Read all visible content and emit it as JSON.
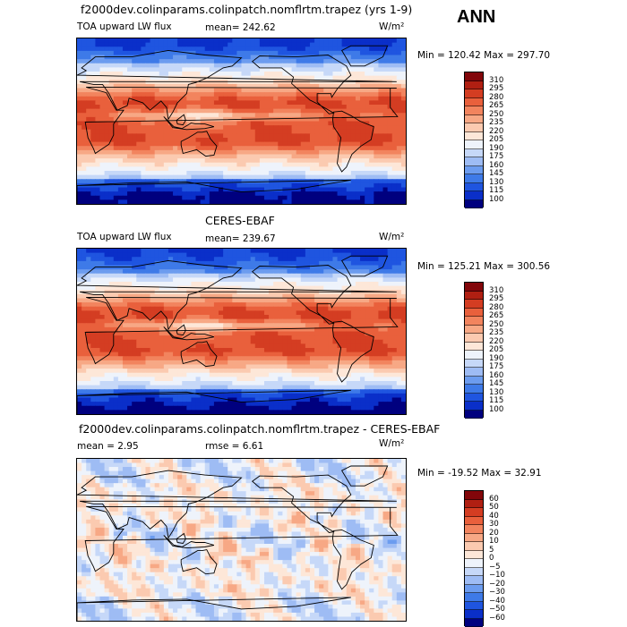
{
  "season": "ANN",
  "units": "W/m²",
  "colors": {
    "lw": [
      "#00007f",
      "#0a2fc9",
      "#1f55e0",
      "#3e7ae8",
      "#6c9cef",
      "#9ebcf4",
      "#c6d8f8",
      "#eef3fb",
      "#fde7d8",
      "#fbcab0",
      "#f7a885",
      "#f2845e",
      "#e9603c",
      "#d43d22",
      "#b01f12",
      "#82060a"
    ],
    "diff": [
      "#00007f",
      "#0a2fc9",
      "#1f55e0",
      "#3e7ae8",
      "#6c9cef",
      "#9ebcf4",
      "#c6d8f8",
      "#eef3fb",
      "#fde7d8",
      "#fbcab0",
      "#f7a885",
      "#f2845e",
      "#e9603c",
      "#d43d22",
      "#b01f12",
      "#82060a"
    ]
  },
  "panels": [
    {
      "title": "f2000dev.colinparams.colinpatch.nomflrtm.trapez (yrs 1-9)",
      "variable": "TOA upward LW flux",
      "mean_text": "mean= 242.62",
      "minmax": "Min = 120.42 Max = 297.70"
    },
    {
      "title": "CERES-EBAF",
      "variable": "TOA upward LW flux",
      "mean_text": "mean= 239.67",
      "minmax": "Min = 125.21 Max = 300.56"
    },
    {
      "title": "f2000dev.colinparams.colinpatch.nomflrtm.trapez - CERES-EBAF",
      "mean_text": "mean =   2.95",
      "rmse_text": "rmse =   6.61",
      "minmax": "Min = -19.52 Max =  32.91"
    }
  ],
  "chart_data": [
    {
      "type": "heatmap",
      "title": "f2000dev.colinparams.colinpatch.nomflrtm.trapez (yrs 1-9)",
      "variable": "TOA upward LW flux",
      "units": "W/m2",
      "mean": 242.62,
      "min": 120.42,
      "max": 297.7,
      "colorbar_levels": [
        310,
        295,
        280,
        265,
        250,
        235,
        220,
        205,
        190,
        175,
        160,
        145,
        130,
        115,
        100
      ],
      "colorbar_labels": [
        "310",
        "295",
        "280",
        "265",
        "250",
        "235",
        "220",
        "205",
        "190",
        "175",
        "160",
        "145",
        "130",
        "115",
        "100"
      ]
    },
    {
      "type": "heatmap",
      "title": "CERES-EBAF",
      "variable": "TOA upward LW flux",
      "units": "W/m2",
      "mean": 239.67,
      "min": 125.21,
      "max": 300.56,
      "colorbar_levels": [
        310,
        295,
        280,
        265,
        250,
        235,
        220,
        205,
        190,
        175,
        160,
        145,
        130,
        115,
        100
      ],
      "colorbar_labels": [
        "310",
        "295",
        "280",
        "265",
        "250",
        "235",
        "220",
        "205",
        "190",
        "175",
        "160",
        "145",
        "130",
        "115",
        "100"
      ]
    },
    {
      "type": "heatmap",
      "title": "f2000dev.colinparams.colinpatch.nomflrtm.trapez - CERES-EBAF",
      "units": "W/m2",
      "mean": 2.95,
      "rmse": 6.61,
      "min": -19.52,
      "max": 32.91,
      "colorbar_levels": [
        60,
        50,
        40,
        30,
        20,
        10,
        5,
        0,
        -5,
        -10,
        -20,
        -30,
        -40,
        -50,
        -60
      ],
      "colorbar_labels": [
        "60",
        "50",
        "40",
        "30",
        "20",
        "10",
        "5",
        "0",
        "−5",
        "−10",
        "−20",
        "−30",
        "−40",
        "−50",
        "−60"
      ]
    }
  ]
}
